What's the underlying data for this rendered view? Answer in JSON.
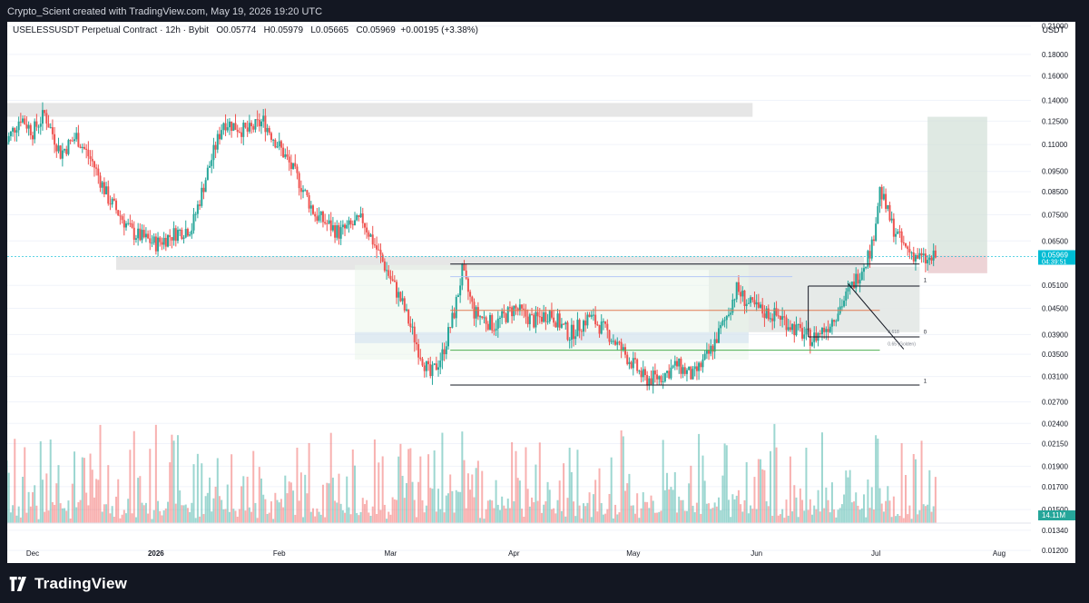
{
  "header": {
    "credit": "Crypto_Scient created with TradingView.com, May 19, 2026 19:20 UTC"
  },
  "footer": {
    "brand": "TradingView",
    "logo_icon": "tradingview-logo-icon"
  },
  "legend": {
    "symbol": "USELESSUSDT Perpetual Contract · 12h · Bybit",
    "open": "O0.05774",
    "high": "H0.05979",
    "low": "L0.05665",
    "close": "C0.05969",
    "change": "+0.00195 (+3.38%)",
    "currency": "USDT"
  },
  "chart_data": {
    "type": "candlestick",
    "title": "USELESSUSDT Perpetual Contract · 12h · Bybit",
    "y_scale": "log",
    "ylim": [
      0.0112,
      0.215
    ],
    "y_ticks": [
      "0.21000",
      "0.18000",
      "0.16000",
      "0.14000",
      "0.12500",
      "0.11000",
      "0.09500",
      "0.08500",
      "0.07500",
      "0.06500",
      "0.05100",
      "0.04500",
      "0.03900",
      "0.03500",
      "0.03100",
      "0.02700",
      "0.02400",
      "0.02150",
      "0.01900",
      "0.01700",
      "0.01500",
      "0.01340",
      "0.01200"
    ],
    "x_ticks": [
      "Dec",
      "2026",
      "Feb",
      "Mar",
      "Apr",
      "May",
      "Jun",
      "Jul",
      "Aug"
    ],
    "price_path": [
      [
        "2025-11-24",
        0.11
      ],
      [
        "2025-11-28",
        0.128
      ],
      [
        "2025-12-01",
        0.118
      ],
      [
        "2025-12-04",
        0.13
      ],
      [
        "2025-12-08",
        0.105
      ],
      [
        "2025-12-12",
        0.115
      ],
      [
        "2025-12-16",
        0.1
      ],
      [
        "2025-12-20",
        0.082
      ],
      [
        "2025-12-26",
        0.068
      ],
      [
        "2026-01-01",
        0.064
      ],
      [
        "2026-01-06",
        0.068
      ],
      [
        "2026-01-10",
        0.07
      ],
      [
        "2026-01-14",
        0.095
      ],
      [
        "2026-01-18",
        0.125
      ],
      [
        "2026-01-24",
        0.118
      ],
      [
        "2026-01-28",
        0.125
      ],
      [
        "2026-02-02",
        0.105
      ],
      [
        "2026-02-06",
        0.09
      ],
      [
        "2026-02-10",
        0.075
      ],
      [
        "2026-02-16",
        0.068
      ],
      [
        "2026-02-22",
        0.073
      ],
      [
        "2026-02-27",
        0.058
      ],
      [
        "2026-03-04",
        0.046
      ],
      [
        "2026-03-08",
        0.036
      ],
      [
        "2026-03-11",
        0.031
      ],
      [
        "2026-03-14",
        0.035
      ],
      [
        "2026-03-17",
        0.044
      ],
      [
        "2026-03-19",
        0.055
      ],
      [
        "2026-03-22",
        0.044
      ],
      [
        "2026-03-27",
        0.041
      ],
      [
        "2026-04-01",
        0.045
      ],
      [
        "2026-04-06",
        0.042
      ],
      [
        "2026-04-10",
        0.044
      ],
      [
        "2026-04-15",
        0.039
      ],
      [
        "2026-04-20",
        0.043
      ],
      [
        "2026-04-25",
        0.039
      ],
      [
        "2026-04-30",
        0.034
      ],
      [
        "2026-05-04",
        0.0305
      ],
      [
        "2026-05-08",
        0.031
      ],
      [
        "2026-05-12",
        0.033
      ],
      [
        "2026-05-16",
        0.031
      ],
      [
        "2026-05-20",
        0.035
      ],
      [
        "2026-05-24",
        0.042
      ],
      [
        "2026-05-27",
        0.05
      ],
      [
        "2026-05-30",
        0.046
      ],
      [
        "2026-06-03",
        0.044
      ],
      [
        "2026-06-07",
        0.043
      ],
      [
        "2026-06-11",
        0.04
      ],
      [
        "2026-06-15",
        0.038
      ],
      [
        "2026-06-19",
        0.041
      ],
      [
        "2026-06-23",
        0.047
      ],
      [
        "2026-06-27",
        0.055
      ],
      [
        "2026-06-30",
        0.063
      ],
      [
        "2026-07-02",
        0.086
      ],
      [
        "2026-07-05",
        0.071
      ],
      [
        "2026-07-08",
        0.063
      ],
      [
        "2026-07-11",
        0.06
      ],
      [
        "2026-07-14",
        0.058
      ],
      [
        "2026-07-16",
        0.0597
      ]
    ],
    "last_price": {
      "value": "0.05969",
      "countdown": "04:39:51",
      "color": "#00bcd4"
    },
    "volume_label": {
      "value": "14.11M",
      "color": "#26a69a"
    },
    "fib_labels": [
      "1",
      "0",
      "1"
    ],
    "zone_labels": [
      "0.618",
      "0.65 (Golden)"
    ],
    "colors": {
      "up": "#26a69a",
      "down": "#ef5350",
      "grid": "#f0f3fa",
      "zone": "#e0e0e0",
      "target": "#d1dfd7",
      "stop": "#e8c8cc",
      "fib_mid": "#e07b53",
      "fib_low": "#4caf50",
      "fib_blue": "#b4c7f7"
    }
  }
}
